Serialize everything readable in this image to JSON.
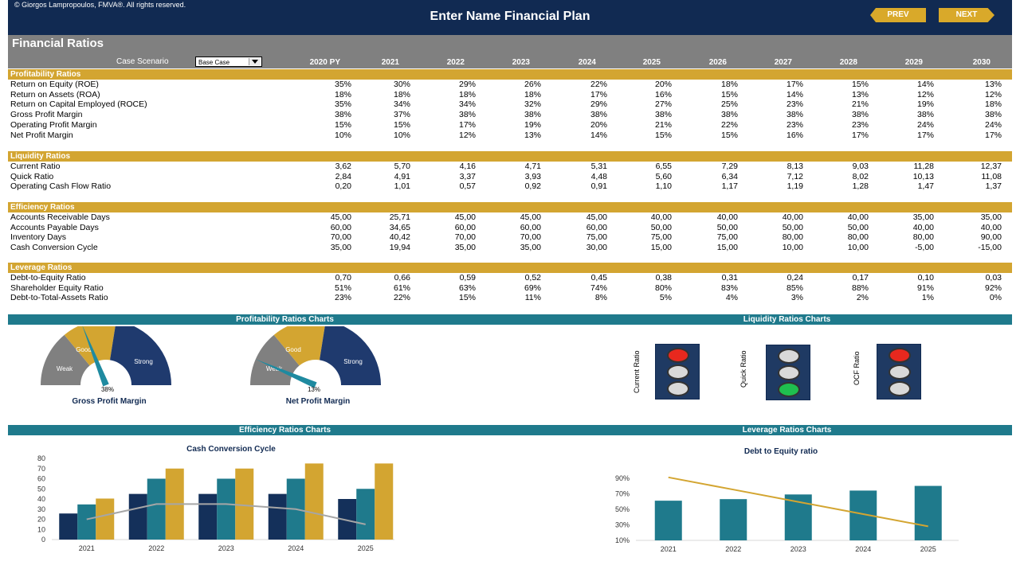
{
  "header": {
    "copyright": "© Giorgos Lampropoulos, FMVA®. All rights reserved.",
    "title": "Enter Name Financial Plan",
    "prev_label": "PREV",
    "next_label": "NEXT"
  },
  "section_title": "Financial Ratios",
  "case_scenario": {
    "label": "Case Scenario",
    "value": "Base Case"
  },
  "years": [
    "2020 PY",
    "2021",
    "2022",
    "2023",
    "2024",
    "2025",
    "2026",
    "2027",
    "2028",
    "2029",
    "2030"
  ],
  "categories": [
    {
      "title": "Profitability Ratios",
      "rows": [
        {
          "label": "Return on Equity (ROE)",
          "values": [
            "35%",
            "30%",
            "29%",
            "26%",
            "22%",
            "20%",
            "18%",
            "17%",
            "15%",
            "14%",
            "13%"
          ]
        },
        {
          "label": "Return on Assets (ROA)",
          "values": [
            "18%",
            "18%",
            "18%",
            "18%",
            "17%",
            "16%",
            "15%",
            "14%",
            "13%",
            "12%",
            "12%"
          ]
        },
        {
          "label": "Return on Capital Employed (ROCE)",
          "values": [
            "35%",
            "34%",
            "34%",
            "32%",
            "29%",
            "27%",
            "25%",
            "23%",
            "21%",
            "19%",
            "18%"
          ]
        },
        {
          "label": "Gross Profit Margin",
          "values": [
            "38%",
            "37%",
            "38%",
            "38%",
            "38%",
            "38%",
            "38%",
            "38%",
            "38%",
            "38%",
            "38%"
          ]
        },
        {
          "label": "Operating Profit Margin",
          "values": [
            "15%",
            "15%",
            "17%",
            "19%",
            "20%",
            "21%",
            "22%",
            "23%",
            "23%",
            "24%",
            "24%"
          ]
        },
        {
          "label": "Net Profit Margin",
          "values": [
            "10%",
            "10%",
            "12%",
            "13%",
            "14%",
            "15%",
            "15%",
            "16%",
            "17%",
            "17%",
            "17%"
          ]
        }
      ]
    },
    {
      "title": "Liquidity Ratios",
      "rows": [
        {
          "label": "Current Ratio",
          "values": [
            "3,62",
            "5,70",
            "4,16",
            "4,71",
            "5,31",
            "6,55",
            "7,29",
            "8,13",
            "9,03",
            "11,28",
            "12,37"
          ]
        },
        {
          "label": "Quick Ratio",
          "values": [
            "2,84",
            "4,91",
            "3,37",
            "3,93",
            "4,48",
            "5,60",
            "6,34",
            "7,12",
            "8,02",
            "10,13",
            "11,08"
          ]
        },
        {
          "label": "Operating Cash Flow Ratio",
          "values": [
            "0,20",
            "1,01",
            "0,57",
            "0,92",
            "0,91",
            "1,10",
            "1,17",
            "1,19",
            "1,28",
            "1,47",
            "1,37"
          ]
        }
      ]
    },
    {
      "title": "Efficiency Ratios",
      "rows": [
        {
          "label": "Accounts Receivable Days",
          "values": [
            "45,00",
            "25,71",
            "45,00",
            "45,00",
            "45,00",
            "40,00",
            "40,00",
            "40,00",
            "40,00",
            "35,00",
            "35,00"
          ]
        },
        {
          "label": "Accounts Payable Days",
          "values": [
            "60,00",
            "34,65",
            "60,00",
            "60,00",
            "60,00",
            "50,00",
            "50,00",
            "50,00",
            "50,00",
            "40,00",
            "40,00"
          ]
        },
        {
          "label": "Inventory Days",
          "values": [
            "70,00",
            "40,42",
            "70,00",
            "70,00",
            "75,00",
            "75,00",
            "75,00",
            "80,00",
            "80,00",
            "80,00",
            "90,00"
          ]
        },
        {
          "label": "Cash Conversion Cycle",
          "values": [
            "35,00",
            "19,94",
            "35,00",
            "35,00",
            "30,00",
            "15,00",
            "15,00",
            "10,00",
            "10,00",
            "-5,00",
            "-15,00"
          ]
        }
      ]
    },
    {
      "title": "Leverage Ratios",
      "rows": [
        {
          "label": "Debt-to-Equity Ratio",
          "values": [
            "0,70",
            "0,66",
            "0,59",
            "0,52",
            "0,45",
            "0,38",
            "0,31",
            "0,24",
            "0,17",
            "0,10",
            "0,03"
          ]
        },
        {
          "label": "Shareholder Equity Ratio",
          "values": [
            "51%",
            "61%",
            "63%",
            "69%",
            "74%",
            "80%",
            "83%",
            "85%",
            "88%",
            "91%",
            "92%"
          ]
        },
        {
          "label": "Debt-to-Total-Assets Ratio",
          "values": [
            "23%",
            "22%",
            "15%",
            "11%",
            "8%",
            "5%",
            "4%",
            "3%",
            "2%",
            "1%",
            "0%"
          ]
        }
      ]
    }
  ],
  "chart_headers": {
    "profitability": "Profitability Ratios Charts",
    "liquidity": "Liquidity Ratios Charts",
    "efficiency": "Efficiency Ratios Charts",
    "leverage": "Leverage Ratios Charts"
  },
  "gauges": [
    {
      "title": "Gross Profit Margin",
      "value_label": "38%",
      "value": 0.38,
      "zones": [
        "Weak",
        "Good",
        "Strong"
      ]
    },
    {
      "title": "Net Profit Margin",
      "value_label": "13%",
      "value": 0.13,
      "zones": [
        "Weak",
        "Good",
        "Strong"
      ]
    }
  ],
  "traffic_lights": [
    {
      "label": "Current Ratio",
      "active": "red"
    },
    {
      "label": "Quick Ratio",
      "active": "green"
    },
    {
      "label": "OCF Ratio",
      "active": "red"
    }
  ],
  "colors": {
    "navy": "#112a52",
    "gold": "#d3a531",
    "teal": "#1f7a8c",
    "gray": "#808080",
    "lamp_red": "#e8281e",
    "lamp_green": "#1fbf4f",
    "lamp_off": "#d9d9d9"
  },
  "chart_data": [
    {
      "type": "bar",
      "title": "Cash Conversion Cycle",
      "categories": [
        "2021",
        "2022",
        "2023",
        "2024",
        "2025"
      ],
      "ylim": [
        0,
        80
      ],
      "yticks": [
        0,
        10,
        20,
        30,
        40,
        50,
        60,
        70,
        80
      ],
      "series": [
        {
          "values": [
            25.71,
            45,
            45,
            45,
            40
          ],
          "color": "#14305a"
        },
        {
          "values": [
            34.65,
            60,
            60,
            60,
            50
          ],
          "color": "#1f7a8c"
        },
        {
          "values": [
            40.42,
            70,
            70,
            75,
            75
          ],
          "color": "#d3a531"
        },
        {
          "type": "line",
          "values": [
            19.94,
            35,
            35,
            30,
            15
          ],
          "color": "#a6a6a6"
        }
      ]
    },
    {
      "type": "bar",
      "title": "Debt to Equity ratio",
      "categories": [
        "2021",
        "2022",
        "2023",
        "2024",
        "2025"
      ],
      "ylim": [
        10,
        100
      ],
      "yticks": [
        10,
        30,
        50,
        70,
        90
      ],
      "ytick_labels": [
        "10%",
        "30%",
        "50%",
        "70%",
        "90%"
      ],
      "series": [
        {
          "values": [
            61,
            63,
            69,
            74,
            80
          ],
          "color": "#1f7a8c"
        },
        {
          "type": "line",
          "values": [
            0.66,
            0.59,
            0.52,
            0.45,
            0.38
          ],
          "color": "#d3a531"
        }
      ]
    }
  ]
}
